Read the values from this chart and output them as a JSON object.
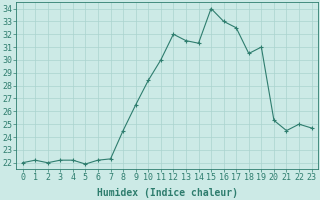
{
  "x": [
    0,
    1,
    2,
    3,
    4,
    5,
    6,
    7,
    8,
    9,
    10,
    11,
    12,
    13,
    14,
    15,
    16,
    17,
    18,
    19,
    20,
    21,
    22,
    23
  ],
  "y": [
    22,
    22.2,
    22,
    22.2,
    22.2,
    21.9,
    22.2,
    22.3,
    24.5,
    26.5,
    28.4,
    30.0,
    32.0,
    31.5,
    31.3,
    34.0,
    33.0,
    32.5,
    30.5,
    31.0,
    25.3,
    24.5,
    25.0,
    24.7
  ],
  "line_color": "#2e7d6e",
  "bg_color": "#cceae6",
  "grid_color": "#aad4ce",
  "xlabel": "Humidex (Indice chaleur)",
  "ylabel_ticks": [
    22,
    23,
    24,
    25,
    26,
    27,
    28,
    29,
    30,
    31,
    32,
    33,
    34
  ],
  "ylim": [
    21.5,
    34.5
  ],
  "xlim": [
    -0.5,
    23.5
  ],
  "tick_fontsize": 6,
  "label_fontsize": 7
}
